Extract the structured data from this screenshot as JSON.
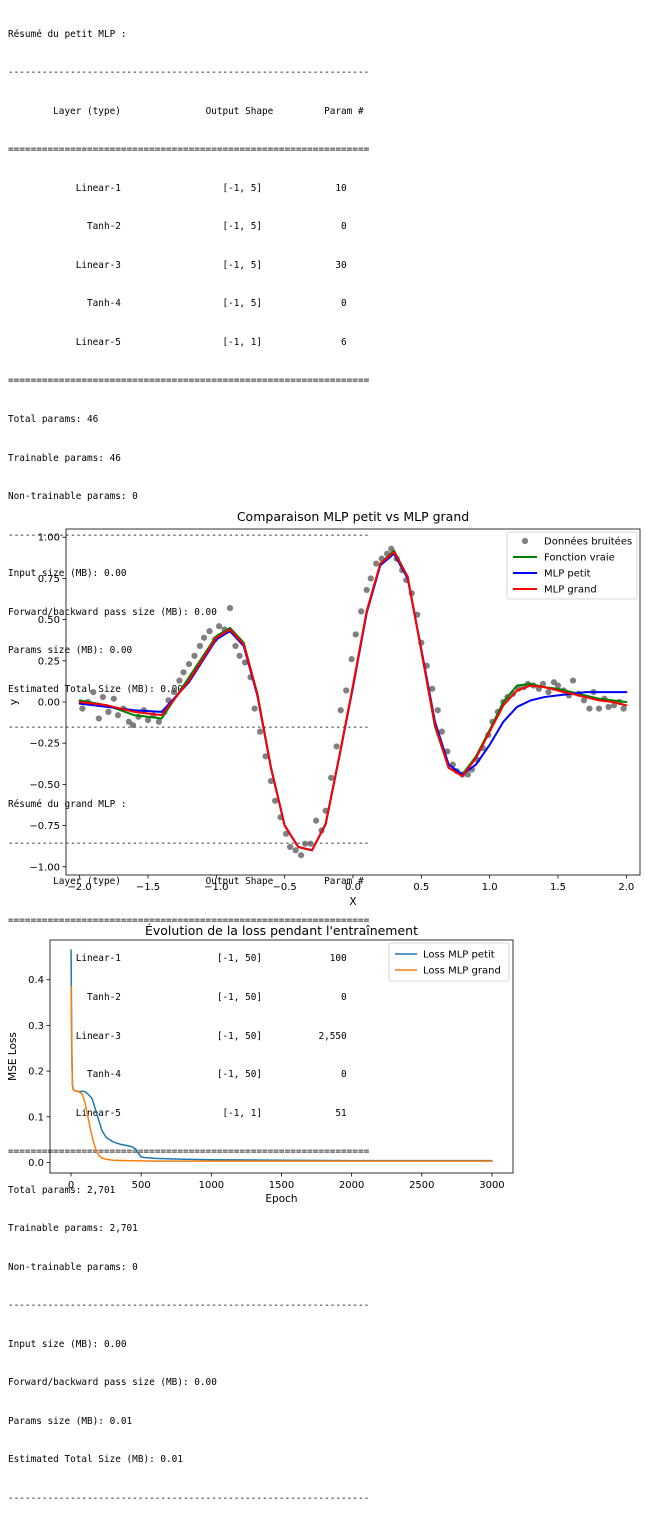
{
  "summaries": [
    {
      "title": "Résumé du petit MLP :",
      "header": {
        "layer": "Layer (type)",
        "shape": "Output Shape",
        "param": "Param #"
      },
      "rows": [
        {
          "layer": "Linear-1",
          "shape": "[-1, 5]",
          "param": "10"
        },
        {
          "layer": "Tanh-2",
          "shape": "[-1, 5]",
          "param": "0"
        },
        {
          "layer": "Linear-3",
          "shape": "[-1, 5]",
          "param": "30"
        },
        {
          "layer": "Tanh-4",
          "shape": "[-1, 5]",
          "param": "0"
        },
        {
          "layer": "Linear-5",
          "shape": "[-1, 1]",
          "param": "6"
        }
      ],
      "totals": [
        "Total params: 46",
        "Trainable params: 46",
        "Non-trainable params: 0"
      ],
      "sizes": [
        "Input size (MB): 0.00",
        "Forward/backward pass size (MB): 0.00",
        "Params size (MB): 0.00",
        "Estimated Total Size (MB): 0.00"
      ]
    },
    {
      "title": "Résumé du grand MLP :",
      "header": {
        "layer": "Layer (type)",
        "shape": "Output Shape",
        "param": "Param #"
      },
      "rows": [
        {
          "layer": "Linear-1",
          "shape": "[-1, 50]",
          "param": "100"
        },
        {
          "layer": "Tanh-2",
          "shape": "[-1, 50]",
          "param": "0"
        },
        {
          "layer": "Linear-3",
          "shape": "[-1, 50]",
          "param": "2,550"
        },
        {
          "layer": "Tanh-4",
          "shape": "[-1, 50]",
          "param": "0"
        },
        {
          "layer": "Linear-5",
          "shape": "[-1, 1]",
          "param": "51"
        }
      ],
      "totals": [
        "Total params: 2,701",
        "Trainable params: 2,701",
        "Non-trainable params: 0"
      ],
      "sizes": [
        "Input size (MB): 0.00",
        "Forward/backward pass size (MB): 0.00",
        "Params size (MB): 0.01",
        "Estimated Total Size (MB): 0.01"
      ]
    }
  ],
  "chart_data": [
    {
      "type": "line",
      "title": "Comparaison MLP petit vs MLP grand",
      "xlabel": "X",
      "ylabel": "y",
      "xlim": [
        -2.1,
        2.1
      ],
      "ylim": [
        -1.05,
        1.05
      ],
      "xticks": [
        -2.0,
        -1.5,
        -1.0,
        -0.5,
        0.0,
        0.5,
        1.0,
        1.5,
        2.0
      ],
      "xtick_labels": [
        "−2.0",
        "−1.5",
        "−1.0",
        "−0.5",
        "0.0",
        "0.5",
        "1.0",
        "1.5",
        "2.0"
      ],
      "yticks": [
        -1.0,
        -0.75,
        -0.5,
        -0.25,
        0.0,
        0.25,
        0.5,
        0.75,
        1.0
      ],
      "ytick_labels": [
        "−1.00",
        "−0.75",
        "−0.50",
        "−0.25",
        "0.00",
        "0.25",
        "0.50",
        "0.75",
        "1.00"
      ],
      "legend": {
        "position": "top-right",
        "entries": [
          "Données bruitées",
          "Fonction vraie",
          "MLP petit",
          "MLP grand"
        ]
      },
      "colors": {
        "scatter": "#555555",
        "true": "#008000",
        "small": "#0000ff",
        "large": "#ff0000"
      },
      "series": [
        {
          "name": "Fonction vraie",
          "x": [
            -2.0,
            -1.8,
            -1.6,
            -1.4,
            -1.2,
            -1.0,
            -0.9,
            -0.8,
            -0.7,
            -0.6,
            -0.5,
            -0.4,
            -0.3,
            -0.2,
            -0.1,
            0.0,
            0.1,
            0.2,
            0.3,
            0.4,
            0.5,
            0.6,
            0.7,
            0.8,
            0.9,
            1.0,
            1.1,
            1.2,
            1.3,
            1.4,
            1.5,
            1.6,
            1.7,
            1.8,
            1.9,
            2.0
          ],
          "y": [
            0.01,
            -0.02,
            -0.08,
            -0.1,
            0.15,
            0.4,
            0.45,
            0.36,
            0.05,
            -0.4,
            -0.75,
            -0.88,
            -0.9,
            -0.74,
            -0.33,
            0.1,
            0.55,
            0.84,
            0.92,
            0.76,
            0.31,
            -0.15,
            -0.4,
            -0.44,
            -0.33,
            -0.17,
            0.0,
            0.1,
            0.11,
            0.09,
            0.08,
            0.06,
            0.04,
            0.02,
            0.01,
            0.0
          ]
        },
        {
          "name": "MLP petit",
          "x": [
            -2.0,
            -1.8,
            -1.6,
            -1.4,
            -1.2,
            -1.0,
            -0.9,
            -0.8,
            -0.7,
            -0.6,
            -0.5,
            -0.4,
            -0.3,
            -0.2,
            -0.1,
            0.0,
            0.1,
            0.2,
            0.3,
            0.4,
            0.5,
            0.6,
            0.7,
            0.8,
            0.9,
            1.0,
            1.1,
            1.2,
            1.3,
            1.4,
            1.5,
            1.6,
            1.7,
            1.8,
            1.9,
            2.0
          ],
          "y": [
            -0.01,
            -0.03,
            -0.05,
            -0.06,
            0.12,
            0.38,
            0.43,
            0.34,
            0.04,
            -0.4,
            -0.75,
            -0.88,
            -0.9,
            -0.74,
            -0.33,
            0.09,
            0.54,
            0.83,
            0.9,
            0.75,
            0.32,
            -0.12,
            -0.38,
            -0.44,
            -0.38,
            -0.26,
            -0.12,
            -0.03,
            0.01,
            0.03,
            0.04,
            0.05,
            0.06,
            0.06,
            0.06,
            0.06
          ]
        },
        {
          "name": "MLP grand",
          "x": [
            -2.0,
            -1.8,
            -1.6,
            -1.4,
            -1.2,
            -1.0,
            -0.9,
            -0.8,
            -0.7,
            -0.6,
            -0.5,
            -0.4,
            -0.3,
            -0.2,
            -0.1,
            0.0,
            0.1,
            0.2,
            0.3,
            0.4,
            0.5,
            0.6,
            0.7,
            0.8,
            0.9,
            1.0,
            1.1,
            1.2,
            1.3,
            1.4,
            1.5,
            1.6,
            1.7,
            1.8,
            1.9,
            2.0
          ],
          "y": [
            0.0,
            -0.02,
            -0.06,
            -0.08,
            0.13,
            0.39,
            0.44,
            0.35,
            0.05,
            -0.4,
            -0.75,
            -0.88,
            -0.9,
            -0.74,
            -0.33,
            0.1,
            0.55,
            0.84,
            0.91,
            0.76,
            0.31,
            -0.14,
            -0.4,
            -0.45,
            -0.34,
            -0.18,
            -0.02,
            0.07,
            0.1,
            0.09,
            0.07,
            0.05,
            0.03,
            0.01,
            0.0,
            -0.02
          ]
        }
      ],
      "scatter": {
        "name": "Données bruitées",
        "x": [
          -1.98,
          -1.94,
          -1.9,
          -1.86,
          -1.83,
          -1.79,
          -1.75,
          -1.72,
          -1.68,
          -1.64,
          -1.61,
          -1.57,
          -1.53,
          -1.5,
          -1.46,
          -1.42,
          -1.38,
          -1.35,
          -1.31,
          -1.27,
          -1.24,
          -1.2,
          -1.16,
          -1.12,
          -1.09,
          -1.05,
          -1.01,
          -0.98,
          -0.94,
          -0.9,
          -0.86,
          -0.83,
          -0.79,
          -0.75,
          -0.72,
          -0.68,
          -0.64,
          -0.6,
          -0.57,
          -0.53,
          -0.49,
          -0.46,
          -0.42,
          -0.38,
          -0.35,
          -0.31,
          -0.27,
          -0.23,
          -0.2,
          -0.16,
          -0.12,
          -0.09,
          -0.05,
          -0.01,
          0.02,
          0.06,
          0.1,
          0.13,
          0.17,
          0.21,
          0.25,
          0.28,
          0.32,
          0.36,
          0.39,
          0.43,
          0.47,
          0.5,
          0.54,
          0.58,
          0.62,
          0.65,
          0.69,
          0.73,
          0.76,
          0.8,
          0.84,
          0.87,
          0.91,
          0.95,
          0.99,
          1.02,
          1.06,
          1.1,
          1.13,
          1.17,
          1.21,
          1.25,
          1.28,
          1.32,
          1.36,
          1.39,
          1.43,
          1.47,
          1.5,
          1.54,
          1.58,
          1.61,
          1.65,
          1.69,
          1.73,
          1.76,
          1.8,
          1.84,
          1.87,
          1.91,
          1.95,
          1.98
        ],
        "y": [
          -0.04,
          0.0,
          0.06,
          -0.1,
          0.03,
          -0.06,
          0.02,
          -0.08,
          -0.04,
          -0.12,
          -0.14,
          -0.09,
          -0.05,
          -0.11,
          -0.08,
          -0.12,
          -0.06,
          0.01,
          0.06,
          0.13,
          0.18,
          0.23,
          0.28,
          0.34,
          0.39,
          0.43,
          0.38,
          0.46,
          0.44,
          0.57,
          0.34,
          0.28,
          0.24,
          0.15,
          -0.04,
          -0.18,
          -0.33,
          -0.48,
          -0.6,
          -0.7,
          -0.8,
          -0.88,
          -0.9,
          -0.93,
          -0.86,
          -0.86,
          -0.72,
          -0.78,
          -0.66,
          -0.46,
          -0.27,
          -0.05,
          0.07,
          0.26,
          0.41,
          0.55,
          0.68,
          0.75,
          0.84,
          0.87,
          0.9,
          0.93,
          0.87,
          0.8,
          0.74,
          0.66,
          0.53,
          0.36,
          0.22,
          0.08,
          -0.05,
          -0.18,
          -0.3,
          -0.38,
          -0.42,
          -0.44,
          -0.44,
          -0.41,
          -0.35,
          -0.28,
          -0.2,
          -0.12,
          -0.06,
          0.0,
          0.03,
          0.05,
          0.08,
          0.09,
          0.11,
          0.1,
          0.08,
          0.11,
          0.06,
          0.12,
          0.1,
          0.07,
          0.04,
          0.13,
          0.05,
          0.01,
          -0.04,
          0.06,
          -0.04,
          0.02,
          -0.03,
          -0.02,
          0.0,
          -0.04
        ]
      }
    },
    {
      "type": "line",
      "title": "Évolution de la loss pendant l'entraînement",
      "xlabel": "Epoch",
      "ylabel": "MSE Loss",
      "xlim": [
        -150,
        3150
      ],
      "ylim": [
        -0.023,
        0.487
      ],
      "xticks": [
        0,
        500,
        1000,
        1500,
        2000,
        2500,
        3000
      ],
      "xtick_labels": [
        "0",
        "500",
        "1000",
        "1500",
        "2000",
        "2500",
        "3000"
      ],
      "yticks": [
        0.0,
        0.1,
        0.2,
        0.3,
        0.4
      ],
      "ytick_labels": [
        "0.0",
        "0.1",
        "0.2",
        "0.3",
        "0.4"
      ],
      "legend": {
        "position": "top-right",
        "entries": [
          "Loss MLP petit",
          "Loss MLP grand"
        ]
      },
      "colors": {
        "small": "#1f77b4",
        "large": "#ff7f0e"
      },
      "series": [
        {
          "name": "Loss MLP petit",
          "x": [
            0,
            3,
            6,
            10,
            15,
            20,
            30,
            50,
            80,
            100,
            120,
            150,
            170,
            190,
            200,
            220,
            250,
            300,
            350,
            400,
            430,
            460,
            480,
            500,
            520,
            600,
            800,
            1000,
            1500,
            2000,
            2500,
            3000
          ],
          "y": [
            0.465,
            0.35,
            0.24,
            0.17,
            0.16,
            0.158,
            0.157,
            0.155,
            0.156,
            0.155,
            0.15,
            0.14,
            0.12,
            0.1,
            0.09,
            0.07,
            0.055,
            0.045,
            0.04,
            0.037,
            0.035,
            0.03,
            0.02,
            0.012,
            0.011,
            0.009,
            0.007,
            0.006,
            0.005,
            0.004,
            0.004,
            0.004
          ]
        },
        {
          "name": "Loss MLP grand",
          "x": [
            0,
            3,
            6,
            10,
            15,
            20,
            30,
            50,
            80,
            100,
            120,
            140,
            160,
            180,
            200,
            220,
            250,
            300,
            400,
            600,
            1000,
            2000,
            3000
          ],
          "y": [
            0.385,
            0.3,
            0.22,
            0.17,
            0.162,
            0.158,
            0.157,
            0.156,
            0.15,
            0.13,
            0.1,
            0.07,
            0.045,
            0.025,
            0.015,
            0.01,
            0.007,
            0.005,
            0.004,
            0.003,
            0.003,
            0.003,
            0.003
          ]
        }
      ]
    }
  ]
}
